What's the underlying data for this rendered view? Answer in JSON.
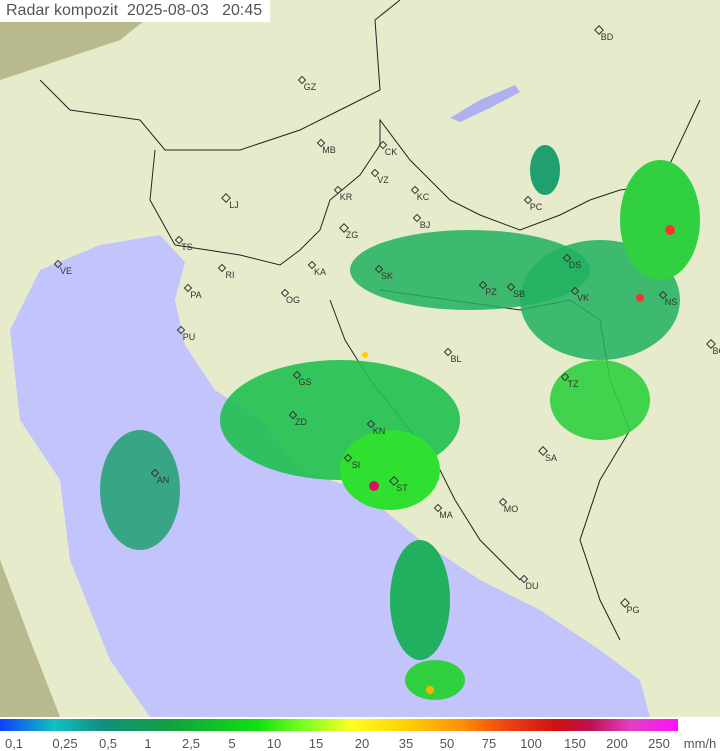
{
  "header": {
    "title": "Radar kompozit",
    "date": "2025-08-03",
    "time": "20:45"
  },
  "colors": {
    "background_relief": "#8a8660",
    "land": "#e6eccb",
    "sea": "#c4c4fc",
    "rain_light": "#20b060",
    "rain_moderate": "#30e030",
    "rain_heavy": "#ff3030"
  },
  "cities": [
    "BD",
    "GZ",
    "MB",
    "CK",
    "VZ",
    "KR",
    "KC",
    "LJ",
    "PC",
    "ZG",
    "BJ",
    "TS",
    "VE",
    "RI",
    "KA",
    "SK",
    "DS",
    "PA",
    "OG",
    "PZ",
    "SB",
    "VK",
    "NS",
    "PU",
    "BL",
    "BG",
    "GS",
    "TZ",
    "ZD",
    "KN",
    "SA",
    "SI",
    "AN",
    "ST",
    "MA",
    "MO",
    "DU",
    "PG"
  ],
  "legend": {
    "labels": [
      "0,1",
      "0,25",
      "0,5",
      "1",
      "2,5",
      "5",
      "10",
      "15",
      "20",
      "35",
      "50",
      "75",
      "100",
      "150",
      "200",
      "250"
    ],
    "unit": "mm/h"
  }
}
